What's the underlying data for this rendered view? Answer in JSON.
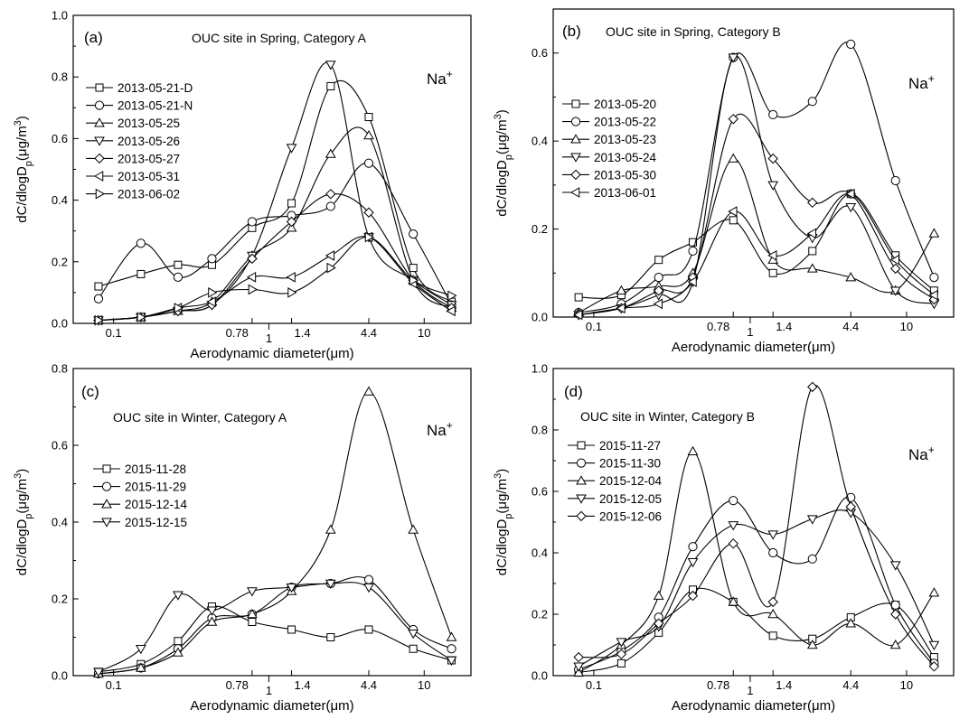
{
  "figure": {
    "common": {
      "xlabel": "Aerodynamic diameter(μm)",
      "ylabel_main": "dC/dlogD",
      "ylabel_sub": "p",
      "ylabel_tail": "(μg/m",
      "ylabel_sup": "3",
      "ylabel_close": ")",
      "ion_main": "Na",
      "ion_sup": "+",
      "xlim": [
        0.055,
        20
      ],
      "x_scale": "log",
      "x_ticks": [
        0.1,
        0.78,
        1,
        1.4,
        4.4,
        10
      ],
      "x_tick_labels": [
        "0.1",
        "0.78",
        "1",
        "1.4",
        "4.4",
        "10"
      ],
      "x_points": [
        0.08,
        0.15,
        0.26,
        0.43,
        0.78,
        1.4,
        2.5,
        4.4,
        8.5,
        15
      ]
    }
  },
  "chart_data": [
    {
      "type": "line",
      "panel_label": "(a)",
      "title": "OUC site in Spring, Category  A",
      "xlabel": "Aerodynamic diameter(μm)",
      "ylim": [
        0,
        1.0
      ],
      "y_ticks": [
        0.0,
        0.2,
        0.4,
        0.6,
        0.8,
        1.0
      ],
      "y_tick_labels": [
        "0.0",
        "0.2",
        "0.4",
        "0.6",
        "0.8",
        "1.0"
      ],
      "x": [
        0.08,
        0.15,
        0.26,
        0.43,
        0.78,
        1.4,
        2.5,
        4.4,
        8.5,
        15
      ],
      "series": [
        {
          "name": "2013-05-21-D",
          "marker": "square",
          "values": [
            0.12,
            0.16,
            0.19,
            0.19,
            0.31,
            0.39,
            0.77,
            0.67,
            0.18,
            0.07
          ]
        },
        {
          "name": "2013-05-21-N",
          "marker": "circle",
          "values": [
            0.08,
            0.26,
            0.15,
            0.21,
            0.33,
            0.35,
            0.38,
            0.52,
            0.29,
            0.06
          ]
        },
        {
          "name": "2013-05-25",
          "marker": "triangle",
          "values": [
            0.01,
            0.02,
            0.04,
            0.07,
            0.22,
            0.31,
            0.55,
            0.61,
            0.14,
            0.05
          ]
        },
        {
          "name": "2013-05-26",
          "marker": "tri-down",
          "values": [
            0.01,
            0.02,
            0.04,
            0.06,
            0.22,
            0.57,
            0.84,
            0.28,
            0.14,
            0.06
          ]
        },
        {
          "name": "2013-05-27",
          "marker": "diamond",
          "values": [
            0.01,
            0.02,
            0.04,
            0.06,
            0.21,
            0.33,
            0.42,
            0.36,
            0.14,
            0.05
          ]
        },
        {
          "name": "2013-05-31",
          "marker": "tri-left",
          "values": [
            0.01,
            0.02,
            0.05,
            0.07,
            0.15,
            0.15,
            0.22,
            0.28,
            0.13,
            0.04
          ]
        },
        {
          "name": "2013-06-02",
          "marker": "tri-right",
          "values": [
            0.01,
            0.02,
            0.05,
            0.1,
            0.11,
            0.1,
            0.18,
            0.28,
            0.14,
            0.09
          ]
        }
      ]
    },
    {
      "type": "line",
      "panel_label": "(b)",
      "title": "OUC site in Spring, Category  B",
      "xlabel": "Aerodynamic diameter(μm)",
      "ylim": [
        0,
        0.7
      ],
      "y_ticks": [
        0.0,
        0.2,
        0.4,
        0.6
      ],
      "y_tick_labels": [
        "0.0",
        "0.2",
        "0.4",
        "0.6"
      ],
      "x": [
        0.08,
        0.15,
        0.26,
        0.43,
        0.78,
        1.4,
        2.5,
        4.4,
        8.5,
        15
      ],
      "series": [
        {
          "name": "2013-05-20",
          "marker": "square",
          "values": [
            0.045,
            0.05,
            0.13,
            0.17,
            0.22,
            0.1,
            0.15,
            0.28,
            0.14,
            0.06
          ]
        },
        {
          "name": "2013-05-22",
          "marker": "circle",
          "values": [
            0.01,
            0.03,
            0.09,
            0.15,
            0.59,
            0.46,
            0.49,
            0.62,
            0.31,
            0.09
          ]
        },
        {
          "name": "2013-05-23",
          "marker": "triangle",
          "values": [
            0.01,
            0.06,
            0.07,
            0.1,
            0.36,
            0.13,
            0.11,
            0.09,
            0.06,
            0.19
          ]
        },
        {
          "name": "2013-05-24",
          "marker": "tri-down",
          "values": [
            0.005,
            0.02,
            0.05,
            0.08,
            0.59,
            0.3,
            0.18,
            0.25,
            0.06,
            0.03
          ]
        },
        {
          "name": "2013-05-30",
          "marker": "diamond",
          "values": [
            0.005,
            0.02,
            0.06,
            0.09,
            0.45,
            0.36,
            0.26,
            0.28,
            0.11,
            0.04
          ]
        },
        {
          "name": "2013-06-01",
          "marker": "tri-left",
          "values": [
            0.005,
            0.02,
            0.03,
            0.08,
            0.24,
            0.14,
            0.19,
            0.28,
            0.13,
            0.05
          ]
        }
      ]
    },
    {
      "type": "line",
      "panel_label": "(c)",
      "title": "OUC site in Winter, Category  A",
      "xlabel": "Aerodynamic diameter(μm)",
      "ylim": [
        0,
        0.8
      ],
      "y_ticks": [
        0.0,
        0.2,
        0.4,
        0.6,
        0.8
      ],
      "y_tick_labels": [
        "0.0",
        "0.2",
        "0.4",
        "0.6",
        "0.8"
      ],
      "x": [
        0.08,
        0.15,
        0.26,
        0.43,
        0.78,
        1.4,
        2.5,
        4.4,
        8.5,
        15
      ],
      "series": [
        {
          "name": "2015-11-28",
          "marker": "square",
          "values": [
            0.01,
            0.03,
            0.09,
            0.18,
            0.14,
            0.12,
            0.1,
            0.12,
            0.07,
            0.04
          ]
        },
        {
          "name": "2015-11-29",
          "marker": "circle",
          "values": [
            0.005,
            0.02,
            0.07,
            0.15,
            0.16,
            0.23,
            0.24,
            0.25,
            0.12,
            0.07
          ]
        },
        {
          "name": "2015-12-14",
          "marker": "triangle",
          "values": [
            0.005,
            0.02,
            0.06,
            0.14,
            0.16,
            0.22,
            0.38,
            0.74,
            0.38,
            0.1
          ]
        },
        {
          "name": "2015-12-15",
          "marker": "tri-down",
          "values": [
            0.01,
            0.07,
            0.21,
            0.17,
            0.22,
            0.23,
            0.24,
            0.23,
            0.11,
            0.04
          ]
        }
      ]
    },
    {
      "type": "line",
      "panel_label": "(d)",
      "title": "OUC site in Winter, Category  B",
      "xlabel": "Aerodynamic diameter(μm)",
      "ylim": [
        0,
        1.0
      ],
      "y_ticks": [
        0.0,
        0.2,
        0.4,
        0.6,
        0.8,
        1.0
      ],
      "y_tick_labels": [
        "0.0",
        "0.2",
        "0.4",
        "0.6",
        "0.8",
        "1.0"
      ],
      "x": [
        0.08,
        0.15,
        0.26,
        0.43,
        0.78,
        1.4,
        2.5,
        4.4,
        8.5,
        15
      ],
      "series": [
        {
          "name": "2015-11-27",
          "marker": "square",
          "values": [
            0.01,
            0.04,
            0.14,
            0.28,
            0.24,
            0.13,
            0.12,
            0.19,
            0.23,
            0.06
          ]
        },
        {
          "name": "2015-11-30",
          "marker": "circle",
          "values": [
            0.02,
            0.08,
            0.19,
            0.42,
            0.57,
            0.4,
            0.38,
            0.58,
            0.23,
            0.04
          ]
        },
        {
          "name": "2015-12-04",
          "marker": "triangle",
          "values": [
            0.01,
            0.1,
            0.26,
            0.73,
            0.24,
            0.2,
            0.1,
            0.17,
            0.1,
            0.27
          ]
        },
        {
          "name": "2015-12-05",
          "marker": "tri-down",
          "values": [
            0.03,
            0.11,
            0.16,
            0.37,
            0.49,
            0.46,
            0.51,
            0.53,
            0.36,
            0.1
          ]
        },
        {
          "name": "2015-12-06",
          "marker": "diamond",
          "values": [
            0.06,
            0.07,
            0.17,
            0.26,
            0.43,
            0.24,
            0.94,
            0.55,
            0.2,
            0.03
          ]
        }
      ]
    }
  ]
}
